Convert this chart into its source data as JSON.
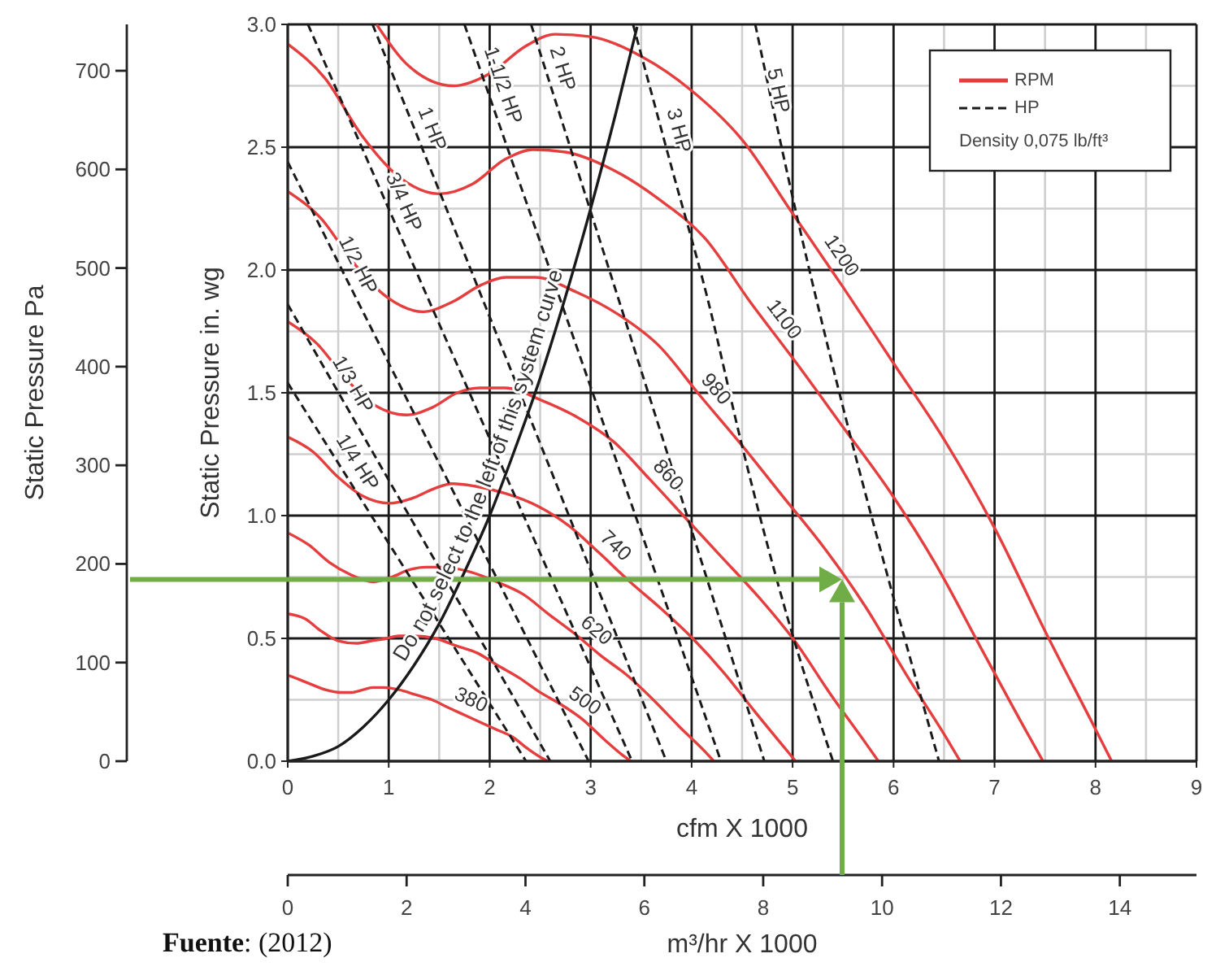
{
  "chart_data": {
    "type": "line",
    "xlabel": "cfm X 1000",
    "ylabel": "Static Pressure in. wg",
    "y2label": "Static Pressure Pa",
    "x2label": "m³/hr X 1000",
    "xlim": [
      0,
      9
    ],
    "xticks": [
      0,
      {
        "value": 0.5,
        "label": null
      },
      1,
      {
        "value": 1.5,
        "label": null
      },
      2,
      {
        "value": 2.5,
        "label": null
      },
      3,
      {
        "value": 3.5,
        "label": null
      },
      4,
      {
        "value": 4.5,
        "label": null
      },
      5,
      {
        "value": 5.5,
        "label": null
      },
      6,
      {
        "value": 6.5,
        "label": null
      },
      7,
      {
        "value": 7.5,
        "label": null
      },
      8,
      {
        "value": 8.5,
        "label": null
      },
      9
    ],
    "ylim": [
      0,
      3
    ],
    "yticks": [
      {
        "value": 0,
        "label": "0.0"
      },
      {
        "value": 0.25,
        "label": null
      },
      0.5,
      {
        "value": 0.75,
        "label": null
      },
      {
        "value": 1,
        "label": "1.0"
      },
      {
        "value": 1.25,
        "label": null
      },
      1.5,
      {
        "value": 1.75,
        "label": null
      },
      {
        "value": 2,
        "label": "2.0"
      },
      {
        "value": 2.25,
        "label": null
      },
      2.5,
      {
        "value": 2.75,
        "label": null
      },
      {
        "value": 3,
        "label": "3.0"
      }
    ],
    "y2lim": [
      0,
      747
    ],
    "y2ticks": [
      0,
      100,
      200,
      300,
      400,
      500,
      600,
      700
    ],
    "x2lim": [
      0,
      15.29
    ],
    "x2ticks": [
      0,
      2,
      4,
      6,
      8,
      10,
      12,
      14
    ],
    "grid": true,
    "legend": "top right",
    "line_style": "solid",
    "series": [
      {
        "name": "RPM",
        "color": "#e53e3e",
        "x": [
          0,
          0.13,
          0.25,
          0.38,
          0.52,
          0.63,
          0.74,
          0.84,
          0.95,
          1.11,
          1.27,
          1.43,
          1.58,
          1.74,
          1.9,
          2.06,
          2.22,
          2.38,
          2.53,
          2.58
        ],
        "values": [
          0.35,
          0.33,
          0.31,
          0.29,
          0.28,
          0.28,
          0.29,
          0.3,
          0.3,
          0.29,
          0.27,
          0.25,
          0.22,
          0.19,
          0.16,
          0.13,
          0.1,
          0.05,
          0.01,
          0
        ]
      },
      {
        "color": "#e53e3e",
        "x": [
          0,
          0.17,
          0.33,
          0.5,
          0.68,
          0.83,
          0.98,
          1.1,
          1.25,
          1.46,
          1.67,
          1.88,
          2.08,
          2.29,
          2.5,
          2.71,
          2.92,
          3.13,
          3.33,
          3.4
        ],
        "values": [
          0.6,
          0.58,
          0.53,
          0.49,
          0.48,
          0.49,
          0.5,
          0.51,
          0.51,
          0.5,
          0.47,
          0.44,
          0.39,
          0.34,
          0.28,
          0.23,
          0.17,
          0.09,
          0.02,
          0
        ]
      },
      {
        "color": "#e53e3e",
        "x": [
          0,
          0.21,
          0.41,
          0.62,
          0.85,
          1.03,
          1.21,
          1.37,
          1.55,
          1.81,
          2.07,
          2.33,
          2.58,
          2.84,
          3.1,
          3.36,
          3.62,
          3.88,
          4.13,
          4.22
        ],
        "values": [
          0.93,
          0.88,
          0.81,
          0.76,
          0.73,
          0.75,
          0.78,
          0.79,
          0.79,
          0.77,
          0.73,
          0.68,
          0.6,
          0.52,
          0.43,
          0.35,
          0.25,
          0.14,
          0.04,
          0
        ]
      },
      {
        "color": "#e53e3e",
        "x": [
          0,
          0.25,
          0.49,
          0.74,
          1.01,
          1.23,
          1.45,
          1.63,
          1.85,
          2.16,
          2.47,
          2.78,
          3.08,
          3.39,
          3.7,
          4.01,
          4.32,
          4.63,
          4.93,
          5.03
        ],
        "values": [
          1.32,
          1.26,
          1.16,
          1.08,
          1.05,
          1.07,
          1.11,
          1.13,
          1.12,
          1.09,
          1.04,
          0.96,
          0.85,
          0.73,
          0.62,
          0.5,
          0.36,
          0.2,
          0.05,
          0
        ]
      },
      {
        "color": "#e53e3e",
        "x": [
          0,
          0.29,
          0.57,
          0.86,
          1.18,
          1.43,
          1.68,
          1.9,
          2.15,
          2.51,
          2.87,
          3.23,
          3.58,
          3.94,
          4.3,
          4.66,
          5.02,
          5.38,
          5.73,
          5.85
        ],
        "values": [
          1.79,
          1.7,
          1.56,
          1.45,
          1.41,
          1.44,
          1.5,
          1.52,
          1.52,
          1.47,
          1.4,
          1.3,
          1.15,
          0.99,
          0.83,
          0.67,
          0.49,
          0.27,
          0.07,
          0
        ]
      },
      {
        "color": "#e53e3e",
        "x": [
          0,
          0.33,
          0.65,
          0.98,
          1.34,
          1.63,
          1.92,
          2.16,
          2.45,
          2.86,
          3.27,
          3.68,
          4.08,
          4.49,
          4.9,
          5.31,
          5.72,
          6.13,
          6.53,
          6.66
        ],
        "values": [
          2.32,
          2.21,
          2.03,
          1.89,
          1.83,
          1.87,
          1.94,
          1.97,
          1.97,
          1.91,
          1.82,
          1.69,
          1.49,
          1.29,
          1.08,
          0.87,
          0.63,
          0.35,
          0.09,
          0
        ]
      },
      {
        "color": "#e53e3e",
        "x": [
          0,
          0.37,
          0.73,
          1.1,
          1.5,
          1.83,
          2.15,
          2.43,
          2.75,
          3.21,
          3.67,
          4.13,
          4.58,
          5.04,
          5.5,
          5.96,
          6.42,
          6.88,
          7.33,
          7.48
        ],
        "values": [
          2.92,
          2.78,
          2.55,
          2.38,
          2.31,
          2.35,
          2.45,
          2.49,
          2.48,
          2.41,
          2.29,
          2.13,
          1.87,
          1.62,
          1.36,
          1.1,
          0.8,
          0.45,
          0.11,
          0
        ]
      },
      {
        "color": "#e53e3e",
        "x": [
          0.88,
          1.2,
          1.64,
          2,
          2.35,
          2.65,
          3,
          3.5,
          4,
          4.5,
          5,
          5.5,
          6,
          6.5,
          7,
          7.5,
          8,
          8.16
        ],
        "values": [
          3,
          2.83,
          2.75,
          2.8,
          2.91,
          2.96,
          2.95,
          2.87,
          2.73,
          2.53,
          2.23,
          1.93,
          1.62,
          1.31,
          0.95,
          0.53,
          0.13,
          0
        ]
      },
      {
        "name": "HP",
        "color": "#1a1a1a",
        "line_style": "dashed",
        "x": [
          0,
          1.18,
          2.36
        ],
        "values": [
          1.54,
          0.77,
          0
        ]
      },
      {
        "color": "#1a1a1a",
        "line_style": "dashed",
        "x": [
          0,
          1.3,
          2.6
        ],
        "values": [
          1.86,
          0.93,
          0
        ]
      },
      {
        "color": "#1a1a1a",
        "line_style": "dashed",
        "x": [
          0,
          1.49,
          2.98
        ],
        "values": [
          2.44,
          1.22,
          0
        ]
      },
      {
        "color": "#1a1a1a",
        "line_style": "dashed",
        "x": [
          0.2,
          1.8,
          3.41
        ],
        "values": [
          3,
          1.5,
          0
        ]
      },
      {
        "color": "#1a1a1a",
        "line_style": "dashed",
        "x": [
          0.84,
          2.3,
          3.75
        ],
        "values": [
          3,
          1.5,
          0
        ]
      },
      {
        "color": "#1a1a1a",
        "line_style": "dashed",
        "x": [
          1.75,
          3.02,
          4.29
        ],
        "values": [
          3,
          1.5,
          0
        ]
      },
      {
        "color": "#1a1a1a",
        "line_style": "dashed",
        "x": [
          2.41,
          3.57,
          4.72
        ],
        "values": [
          3,
          1.5,
          0
        ]
      },
      {
        "color": "#1a1a1a",
        "line_style": "dashed",
        "x": [
          3.42,
          3.8,
          4.16,
          4.49,
          4.96,
          5.4
        ],
        "values": [
          3,
          2.42,
          1.88,
          1.3,
          0.57,
          0
        ]
      },
      {
        "color": "#1a1a1a",
        "line_style": "dashed",
        "x": [
          4.63,
          5.07,
          5.5,
          5.97,
          6.45
        ],
        "values": [
          3,
          2.17,
          1.44,
          0.71,
          0
        ]
      },
      {
        "color": "#1a1a1a",
        "x": [
          0,
          0.25,
          0.5,
          0.75,
          1,
          1.25,
          1.5,
          1.75,
          2,
          2.25,
          2.5,
          2.75,
          3,
          3.25,
          3.46
        ],
        "values": [
          0,
          0.02,
          0.06,
          0.14,
          0.25,
          0.39,
          0.56,
          0.77,
          1,
          1.27,
          1.56,
          1.89,
          2.25,
          2.64,
          2.99
        ]
      }
    ],
    "ref_lines": [
      {
        "axis": "y",
        "value": 0.74,
        "color": "#70ad47"
      },
      {
        "axis": "x",
        "value": 5.49,
        "color": "#70ad47"
      }
    ],
    "annotations": [
      {
        "text": "380",
        "x": 1.75,
        "y": 0.19
      },
      {
        "text": "500",
        "x": 2.85,
        "y": 0.19
      },
      {
        "text": "620",
        "x": 2.95,
        "y": 0.48
      },
      {
        "text": "740",
        "x": 3.14,
        "y": 0.83
      },
      {
        "text": "860",
        "x": 3.65,
        "y": 1.12
      },
      {
        "text": "980",
        "x": 4.11,
        "y": 1.47
      },
      {
        "text": "1100",
        "x": 4.79,
        "y": 1.76
      },
      {
        "text": "1200",
        "x": 5.35,
        "y": 2.02
      },
      {
        "text": "1/4 HP",
        "x": 0.55,
        "y": 1.18
      },
      {
        "text": "1/3 HP",
        "x": 0.5,
        "y": 1.5
      },
      {
        "text": "1/2 HP",
        "x": 0.55,
        "y": 1.99
      },
      {
        "text": "3/4 HP",
        "x": 1.0,
        "y": 2.25
      },
      {
        "text": "1 HP",
        "x": 1.28,
        "y": 2.55
      },
      {
        "text": "1-1/2 HP",
        "x": 1.98,
        "y": 2.73
      },
      {
        "text": "2 HP",
        "x": 2.57,
        "y": 2.8
      },
      {
        "text": "3 HP",
        "x": 3.71,
        "y": 2.55
      },
      {
        "text": "5 HP",
        "x": 4.86,
        "y": 2.73
      },
      {
        "text": "Do not select to the left of this system curve",
        "x": 2.15,
        "y": 1.16
      },
      "Density 0,075 lb/ft³",
      "Fuente: (2012)"
    ]
  }
}
